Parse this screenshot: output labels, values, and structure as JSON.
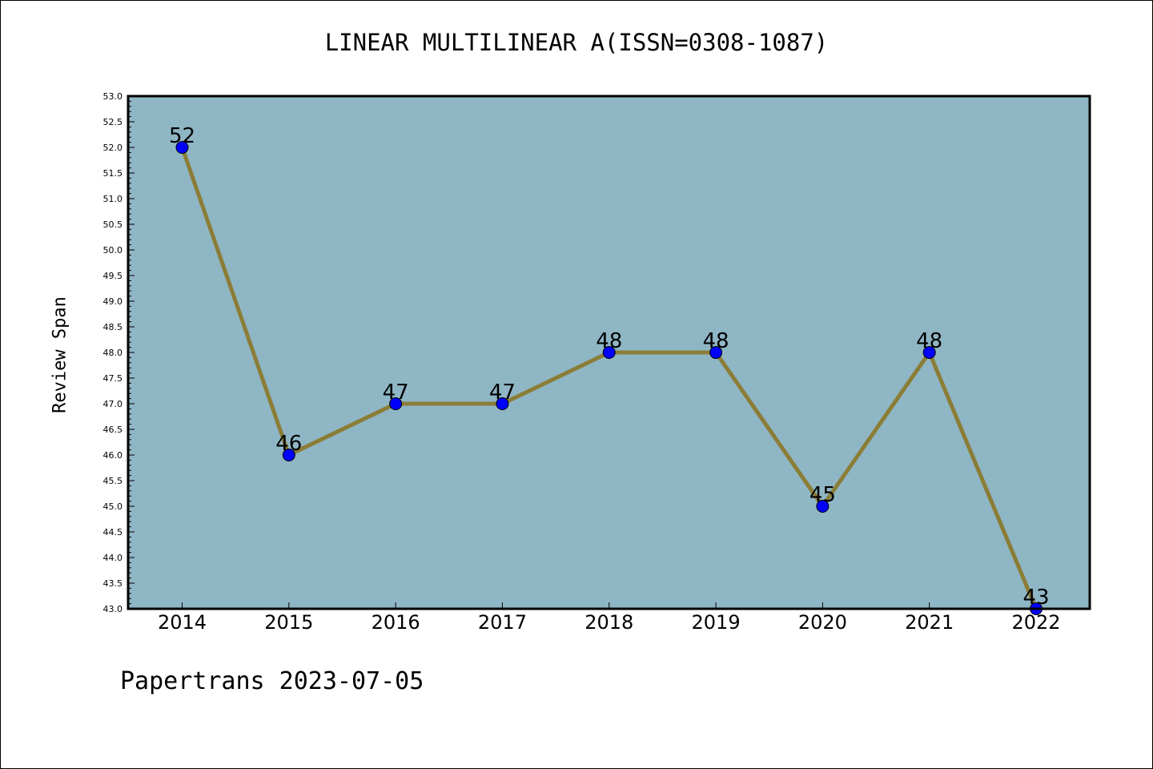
{
  "chart_data": {
    "type": "line",
    "title": "LINEAR MULTILINEAR A(ISSN=0308-1087)",
    "ylabel": "Review Span",
    "xlabel": "",
    "categories": [
      "2014",
      "2015",
      "2016",
      "2017",
      "2018",
      "2019",
      "2020",
      "2021",
      "2022"
    ],
    "series": [
      {
        "values": [
          52,
          46,
          47,
          47,
          48,
          48,
          45,
          48,
          43
        ],
        "line_color": "#8b7d37",
        "marker_color": "#0000ff"
      }
    ],
    "data_labels": [
      "52",
      "46",
      "47",
      "47",
      "48",
      "48",
      "45",
      "48",
      "43"
    ],
    "ylim": [
      43.0,
      53.0
    ],
    "yticks": [
      "43.0",
      "43.5",
      "44.0",
      "44.5",
      "45.0",
      "45.5",
      "46.0",
      "46.5",
      "47.0",
      "47.5",
      "48.0",
      "48.5",
      "49.0",
      "49.5",
      "50.0",
      "50.5",
      "51.0",
      "51.5",
      "52.0",
      "52.5",
      "53.0"
    ],
    "plot_background": "#8fb6c4",
    "grid": false,
    "legend": "none"
  },
  "footer": {
    "text": "Papertrans 2023-07-05"
  }
}
